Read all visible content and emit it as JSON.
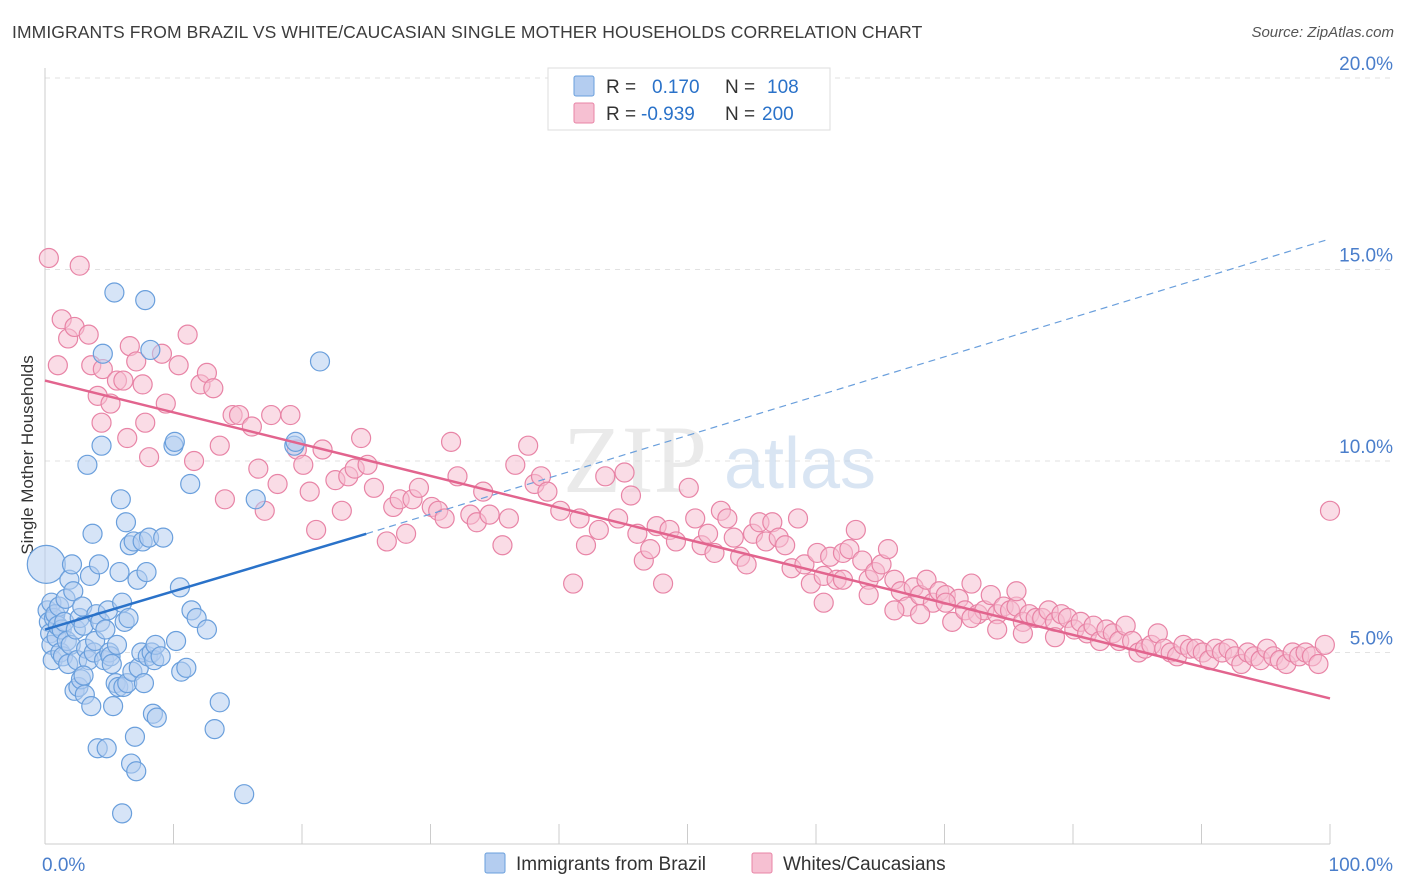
{
  "title": "IMMIGRANTS FROM BRAZIL VS WHITE/CAUCASIAN SINGLE MOTHER HOUSEHOLDS CORRELATION CHART",
  "source": "Source: ZipAtlas.com",
  "watermark": {
    "zip": "ZIP",
    "atlas": "atlas"
  },
  "colors": {
    "blue": "#6a9fdc",
    "blue_fill": "#b4cdf0",
    "blue_line": "#2a72c9",
    "pink": "#e884a6",
    "pink_fill": "#f6c0d2",
    "pink_line": "#e2648e",
    "axis_text": "#4a7ecb",
    "grid": "#e2e2e2"
  },
  "legend": {
    "rows": [
      {
        "r_label": "R =",
        "r_value": "0.170",
        "n_label": "N =",
        "n_value": "108",
        "series": "blue"
      },
      {
        "r_label": "R =",
        "r_value": "-0.939",
        "n_label": "N =",
        "n_value": "200",
        "series": "pink"
      }
    ]
  },
  "chart_data": {
    "type": "scatter",
    "xlabel": "",
    "ylabel": "Single Mother Households",
    "xlim": [
      0,
      100
    ],
    "ylim": [
      0,
      20
    ],
    "x_tick_labels": [
      "0.0%",
      "100.0%"
    ],
    "y_ticks": [
      5,
      10,
      15,
      20
    ],
    "y_tick_labels": [
      "5.0%",
      "10.0%",
      "15.0%",
      "20.0%"
    ],
    "grid": "horizontal dashed",
    "legend_position": "top-center",
    "series": [
      {
        "name": "Immigrants from Brazil",
        "color": "blue",
        "trend": {
          "x0": 0,
          "y0": 5.6,
          "x1": 25,
          "y1": 8.1,
          "x_dash_end": 100,
          "y_dash_end": 15.8
        },
        "points": [
          [
            0.1,
            7.3
          ],
          [
            0.2,
            6.1
          ],
          [
            0.3,
            5.8
          ],
          [
            0.4,
            5.5
          ],
          [
            0.5,
            5.2
          ],
          [
            0.5,
            6.3
          ],
          [
            0.6,
            4.8
          ],
          [
            0.7,
            5.9
          ],
          [
            0.8,
            6.0
          ],
          [
            0.9,
            5.4
          ],
          [
            1.0,
            5.7
          ],
          [
            1.1,
            6.2
          ],
          [
            1.2,
            5.0
          ],
          [
            1.3,
            5.6
          ],
          [
            1.4,
            4.9
          ],
          [
            1.5,
            5.8
          ],
          [
            1.6,
            6.4
          ],
          [
            1.7,
            5.3
          ],
          [
            1.8,
            4.7
          ],
          [
            1.9,
            6.9
          ],
          [
            2.0,
            5.2
          ],
          [
            2.1,
            7.3
          ],
          [
            2.2,
            6.6
          ],
          [
            2.3,
            4.0
          ],
          [
            2.4,
            5.6
          ],
          [
            2.5,
            4.8
          ],
          [
            2.6,
            4.1
          ],
          [
            2.7,
            5.9
          ],
          [
            2.8,
            4.3
          ],
          [
            2.9,
            6.2
          ],
          [
            3.0,
            5.7
          ],
          [
            3.1,
            3.9
          ],
          [
            3.2,
            5.1
          ],
          [
            3.3,
            9.9
          ],
          [
            3.4,
            4.8
          ],
          [
            3.5,
            7.0
          ],
          [
            3.6,
            3.6
          ],
          [
            3.7,
            8.1
          ],
          [
            3.8,
            5.0
          ],
          [
            3.9,
            5.3
          ],
          [
            4.0,
            6.0
          ],
          [
            4.1,
            2.5
          ],
          [
            4.2,
            7.3
          ],
          [
            4.3,
            5.8
          ],
          [
            4.4,
            10.4
          ],
          [
            4.5,
            12.8
          ],
          [
            4.6,
            4.8
          ],
          [
            4.7,
            5.6
          ],
          [
            4.8,
            2.5
          ],
          [
            4.9,
            6.1
          ],
          [
            5.0,
            5.0
          ],
          [
            5.1,
            4.9
          ],
          [
            5.2,
            4.7
          ],
          [
            5.3,
            3.6
          ],
          [
            5.4,
            14.4
          ],
          [
            5.5,
            4.2
          ],
          [
            5.6,
            5.2
          ],
          [
            5.7,
            4.1
          ],
          [
            5.8,
            7.1
          ],
          [
            5.9,
            9.0
          ],
          [
            6.0,
            6.3
          ],
          [
            6.1,
            4.1
          ],
          [
            6.2,
            5.8
          ],
          [
            6.3,
            8.4
          ],
          [
            6.4,
            4.2
          ],
          [
            6.5,
            5.9
          ],
          [
            6.6,
            7.8
          ],
          [
            6.7,
            2.1
          ],
          [
            6.8,
            4.5
          ],
          [
            6.9,
            7.9
          ],
          [
            7.0,
            2.8
          ],
          [
            7.1,
            1.9
          ],
          [
            7.2,
            6.9
          ],
          [
            7.3,
            4.6
          ],
          [
            7.5,
            5.0
          ],
          [
            7.6,
            7.9
          ],
          [
            7.7,
            4.2
          ],
          [
            7.8,
            14.2
          ],
          [
            7.9,
            7.1
          ],
          [
            8.0,
            4.9
          ],
          [
            8.1,
            8.0
          ],
          [
            8.2,
            12.9
          ],
          [
            8.3,
            5.0
          ],
          [
            8.4,
            3.4
          ],
          [
            8.5,
            4.8
          ],
          [
            8.6,
            5.2
          ],
          [
            8.7,
            3.3
          ],
          [
            9.0,
            4.9
          ],
          [
            9.2,
            8.0
          ],
          [
            10.0,
            10.4
          ],
          [
            10.1,
            10.5
          ],
          [
            10.2,
            5.3
          ],
          [
            10.5,
            6.7
          ],
          [
            10.6,
            4.5
          ],
          [
            11.0,
            4.6
          ],
          [
            11.3,
            9.4
          ],
          [
            11.4,
            6.1
          ],
          [
            11.8,
            5.9
          ],
          [
            12.6,
            5.6
          ],
          [
            13.2,
            3.0
          ],
          [
            13.6,
            3.7
          ],
          [
            15.5,
            1.3
          ],
          [
            16.4,
            9.0
          ],
          [
            19.4,
            10.4
          ],
          [
            19.5,
            10.5
          ],
          [
            21.4,
            12.6
          ],
          [
            6.0,
            0.8
          ],
          [
            3.0,
            4.4
          ]
        ]
      },
      {
        "name": "Whites/Caucasians",
        "color": "pink",
        "trend": {
          "x0": 0,
          "y0": 12.1,
          "x1": 100,
          "y1": 3.8
        },
        "points": [
          [
            0.3,
            15.3
          ],
          [
            1.0,
            12.5
          ],
          [
            1.3,
            13.7
          ],
          [
            1.8,
            13.2
          ],
          [
            2.3,
            13.5
          ],
          [
            2.7,
            15.1
          ],
          [
            3.4,
            13.3
          ],
          [
            3.6,
            12.5
          ],
          [
            4.1,
            11.7
          ],
          [
            4.4,
            11.0
          ],
          [
            4.5,
            12.4
          ],
          [
            5.1,
            11.5
          ],
          [
            5.6,
            12.1
          ],
          [
            6.1,
            12.1
          ],
          [
            6.4,
            10.6
          ],
          [
            6.6,
            13.0
          ],
          [
            7.1,
            12.6
          ],
          [
            7.6,
            12.0
          ],
          [
            7.8,
            11.0
          ],
          [
            8.1,
            10.1
          ],
          [
            9.1,
            12.8
          ],
          [
            9.4,
            11.5
          ],
          [
            10.4,
            12.5
          ],
          [
            11.1,
            13.3
          ],
          [
            11.6,
            10.0
          ],
          [
            12.1,
            12.0
          ],
          [
            12.6,
            12.3
          ],
          [
            13.1,
            11.9
          ],
          [
            13.6,
            10.4
          ],
          [
            14.0,
            9.0
          ],
          [
            14.6,
            11.2
          ],
          [
            15.1,
            11.2
          ],
          [
            16.1,
            10.9
          ],
          [
            16.6,
            9.8
          ],
          [
            17.1,
            8.7
          ],
          [
            17.6,
            11.2
          ],
          [
            18.1,
            9.4
          ],
          [
            19.1,
            11.2
          ],
          [
            19.6,
            10.3
          ],
          [
            20.1,
            9.9
          ],
          [
            20.6,
            9.2
          ],
          [
            21.1,
            8.2
          ],
          [
            21.6,
            10.3
          ],
          [
            22.6,
            9.5
          ],
          [
            23.1,
            8.7
          ],
          [
            23.6,
            9.6
          ],
          [
            24.1,
            9.8
          ],
          [
            24.6,
            10.6
          ],
          [
            25.1,
            9.9
          ],
          [
            25.6,
            9.3
          ],
          [
            26.6,
            7.9
          ],
          [
            27.1,
            8.8
          ],
          [
            27.6,
            9.0
          ],
          [
            28.1,
            8.1
          ],
          [
            28.6,
            9.0
          ],
          [
            29.1,
            9.3
          ],
          [
            30.1,
            8.8
          ],
          [
            30.6,
            8.7
          ],
          [
            31.1,
            8.5
          ],
          [
            31.6,
            10.5
          ],
          [
            32.1,
            9.6
          ],
          [
            33.1,
            8.6
          ],
          [
            33.6,
            8.4
          ],
          [
            34.1,
            9.2
          ],
          [
            34.6,
            8.6
          ],
          [
            35.6,
            7.8
          ],
          [
            36.1,
            8.5
          ],
          [
            36.6,
            9.9
          ],
          [
            37.6,
            10.4
          ],
          [
            38.1,
            9.4
          ],
          [
            38.6,
            9.6
          ],
          [
            39.1,
            9.2
          ],
          [
            40.1,
            8.7
          ],
          [
            41.1,
            6.8
          ],
          [
            41.6,
            8.5
          ],
          [
            42.1,
            7.8
          ],
          [
            43.1,
            8.2
          ],
          [
            43.6,
            9.6
          ],
          [
            44.6,
            8.5
          ],
          [
            45.1,
            9.7
          ],
          [
            45.6,
            9.1
          ],
          [
            46.1,
            8.1
          ],
          [
            46.6,
            7.4
          ],
          [
            47.1,
            7.7
          ],
          [
            47.6,
            8.3
          ],
          [
            48.1,
            6.8
          ],
          [
            48.6,
            8.2
          ],
          [
            49.1,
            7.9
          ],
          [
            50.1,
            9.3
          ],
          [
            50.6,
            8.5
          ],
          [
            51.1,
            7.8
          ],
          [
            51.6,
            8.1
          ],
          [
            52.1,
            7.6
          ],
          [
            52.6,
            8.7
          ],
          [
            53.1,
            8.5
          ],
          [
            53.6,
            8.0
          ],
          [
            54.1,
            7.5
          ],
          [
            54.6,
            7.3
          ],
          [
            55.1,
            8.1
          ],
          [
            55.6,
            8.4
          ],
          [
            56.1,
            7.9
          ],
          [
            56.6,
            8.4
          ],
          [
            57.1,
            8.0
          ],
          [
            57.6,
            7.8
          ],
          [
            58.1,
            7.2
          ],
          [
            58.6,
            8.5
          ],
          [
            59.1,
            7.3
          ],
          [
            59.6,
            6.8
          ],
          [
            60.1,
            7.6
          ],
          [
            60.6,
            7.0
          ],
          [
            61.1,
            7.5
          ],
          [
            61.6,
            6.9
          ],
          [
            62.1,
            7.6
          ],
          [
            62.6,
            7.7
          ],
          [
            63.1,
            8.2
          ],
          [
            63.6,
            7.4
          ],
          [
            64.1,
            6.9
          ],
          [
            64.6,
            7.1
          ],
          [
            65.1,
            7.3
          ],
          [
            65.6,
            7.7
          ],
          [
            66.1,
            6.9
          ],
          [
            66.6,
            6.6
          ],
          [
            67.1,
            6.2
          ],
          [
            67.6,
            6.7
          ],
          [
            68.1,
            6.5
          ],
          [
            68.6,
            6.9
          ],
          [
            69.1,
            6.3
          ],
          [
            69.6,
            6.6
          ],
          [
            70.1,
            6.5
          ],
          [
            70.6,
            5.8
          ],
          [
            71.1,
            6.4
          ],
          [
            71.6,
            6.1
          ],
          [
            72.1,
            6.8
          ],
          [
            72.6,
            6.0
          ],
          [
            73.1,
            6.1
          ],
          [
            73.6,
            6.5
          ],
          [
            74.1,
            6.0
          ],
          [
            74.6,
            6.2
          ],
          [
            75.1,
            6.1
          ],
          [
            75.6,
            6.2
          ],
          [
            76.1,
            5.8
          ],
          [
            76.6,
            6.0
          ],
          [
            77.1,
            5.9
          ],
          [
            77.6,
            5.9
          ],
          [
            78.1,
            6.1
          ],
          [
            78.6,
            5.8
          ],
          [
            79.1,
            6.0
          ],
          [
            79.6,
            5.9
          ],
          [
            80.1,
            5.6
          ],
          [
            80.6,
            5.8
          ],
          [
            81.1,
            5.5
          ],
          [
            81.6,
            5.7
          ],
          [
            82.1,
            5.3
          ],
          [
            82.6,
            5.6
          ],
          [
            83.1,
            5.5
          ],
          [
            83.6,
            5.3
          ],
          [
            84.1,
            5.7
          ],
          [
            84.6,
            5.3
          ],
          [
            85.1,
            5.0
          ],
          [
            85.6,
            5.1
          ],
          [
            86.1,
            5.2
          ],
          [
            86.6,
            5.5
          ],
          [
            87.1,
            5.1
          ],
          [
            87.6,
            5.0
          ],
          [
            88.1,
            4.9
          ],
          [
            88.6,
            5.2
          ],
          [
            89.1,
            5.1
          ],
          [
            89.6,
            5.1
          ],
          [
            90.1,
            5.0
          ],
          [
            90.6,
            4.8
          ],
          [
            91.1,
            5.1
          ],
          [
            91.6,
            5.0
          ],
          [
            92.1,
            5.1
          ],
          [
            92.6,
            4.9
          ],
          [
            93.1,
            4.7
          ],
          [
            93.6,
            5.0
          ],
          [
            94.1,
            4.9
          ],
          [
            94.6,
            4.8
          ],
          [
            95.1,
            5.1
          ],
          [
            95.6,
            4.9
          ],
          [
            96.1,
            4.8
          ],
          [
            96.6,
            4.7
          ],
          [
            97.1,
            5.0
          ],
          [
            97.6,
            4.9
          ],
          [
            98.1,
            5.0
          ],
          [
            98.6,
            4.9
          ],
          [
            99.1,
            4.7
          ],
          [
            99.6,
            5.2
          ],
          [
            100.0,
            8.7
          ],
          [
            75.6,
            6.6
          ],
          [
            60.6,
            6.3
          ],
          [
            62.1,
            6.9
          ],
          [
            64.1,
            6.5
          ],
          [
            66.1,
            6.1
          ],
          [
            68.1,
            6.0
          ],
          [
            70.1,
            6.3
          ],
          [
            72.1,
            5.9
          ],
          [
            74.1,
            5.6
          ],
          [
            76.1,
            5.5
          ],
          [
            78.6,
            5.4
          ]
        ]
      }
    ],
    "bottom_legend": [
      "Immigrants from Brazil",
      "Whites/Caucasians"
    ]
  }
}
